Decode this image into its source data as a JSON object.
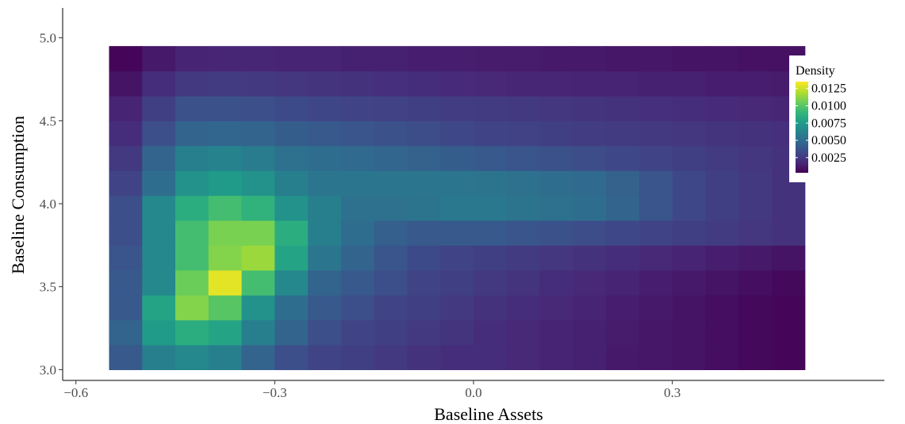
{
  "chart_data": {
    "type": "heatmap",
    "title": "",
    "xlabel": "Baseline Assets",
    "ylabel": "Baseline Consumption",
    "xlim": [
      -0.62,
      0.62
    ],
    "ylim": [
      2.935,
      5.18
    ],
    "x_ticks": [
      {
        "value": -0.6,
        "label": "−0.6"
      },
      {
        "value": -0.3,
        "label": "−0.3"
      },
      {
        "value": 0.0,
        "label": "0.0"
      },
      {
        "value": 0.3,
        "label": "0.3"
      }
    ],
    "y_ticks": [
      {
        "value": 3.0,
        "label": "3.0"
      },
      {
        "value": 3.5,
        "label": "3.5"
      },
      {
        "value": 4.0,
        "label": "4.0"
      },
      {
        "value": 4.5,
        "label": "4.5"
      },
      {
        "value": 5.0,
        "label": "5.0"
      }
    ],
    "x_bin_start": -0.55,
    "x_bin_width": 0.05,
    "y_bin_start": 3.0,
    "y_bin_height": 0.15,
    "density_grid": [
      [
        0.004,
        0.006,
        0.0065,
        0.006,
        0.0045,
        0.0035,
        0.003,
        0.0028,
        0.0025,
        0.0022,
        0.002,
        0.002,
        0.0018,
        0.0016,
        0.0015,
        0.0012,
        0.0011,
        0.001,
        0.0008,
        0.0006,
        0.0005
      ],
      [
        0.0045,
        0.0075,
        0.0085,
        0.008,
        0.006,
        0.0045,
        0.0035,
        0.003,
        0.0028,
        0.0025,
        0.0023,
        0.002,
        0.0018,
        0.0016,
        0.0015,
        0.0013,
        0.0011,
        0.001,
        0.0008,
        0.0006,
        0.0005
      ],
      [
        0.004,
        0.008,
        0.011,
        0.01,
        0.007,
        0.005,
        0.004,
        0.0035,
        0.003,
        0.0028,
        0.0025,
        0.0022,
        0.002,
        0.0018,
        0.0016,
        0.0014,
        0.0012,
        0.001,
        0.0008,
        0.0006,
        0.0005
      ],
      [
        0.004,
        0.0065,
        0.0105,
        0.013,
        0.0095,
        0.0065,
        0.0045,
        0.004,
        0.0035,
        0.003,
        0.0028,
        0.0025,
        0.0023,
        0.002,
        0.0018,
        0.0016,
        0.0014,
        0.0012,
        0.001,
        0.0008,
        0.0006
      ],
      [
        0.0038,
        0.0065,
        0.0095,
        0.011,
        0.0115,
        0.008,
        0.0055,
        0.0045,
        0.0038,
        0.0033,
        0.003,
        0.0028,
        0.0026,
        0.0024,
        0.0022,
        0.002,
        0.0018,
        0.0016,
        0.0014,
        0.0012,
        0.001
      ],
      [
        0.0035,
        0.0065,
        0.0095,
        0.0108,
        0.0108,
        0.0085,
        0.006,
        0.005,
        0.0043,
        0.004,
        0.004,
        0.004,
        0.0038,
        0.0036,
        0.0034,
        0.0032,
        0.003,
        0.0028,
        0.0026,
        0.0024,
        0.0022
      ],
      [
        0.0035,
        0.0065,
        0.0085,
        0.0095,
        0.0088,
        0.007,
        0.006,
        0.0052,
        0.0052,
        0.0054,
        0.0056,
        0.0056,
        0.0054,
        0.0052,
        0.005,
        0.0045,
        0.0038,
        0.0032,
        0.0028,
        0.0025,
        0.0022
      ],
      [
        0.003,
        0.005,
        0.007,
        0.0075,
        0.007,
        0.006,
        0.0055,
        0.0055,
        0.0055,
        0.0055,
        0.0055,
        0.0054,
        0.0052,
        0.005,
        0.0048,
        0.0044,
        0.0038,
        0.0032,
        0.0028,
        0.0025,
        0.0022
      ],
      [
        0.0025,
        0.0045,
        0.006,
        0.0062,
        0.0058,
        0.0052,
        0.005,
        0.0048,
        0.0046,
        0.0044,
        0.0042,
        0.004,
        0.0038,
        0.0036,
        0.0034,
        0.0032,
        0.003,
        0.0028,
        0.0026,
        0.0024,
        0.0022
      ],
      [
        0.002,
        0.0035,
        0.0045,
        0.0046,
        0.0045,
        0.0042,
        0.004,
        0.0038,
        0.0036,
        0.0034,
        0.0032,
        0.003,
        0.0029,
        0.0028,
        0.0027,
        0.0026,
        0.0025,
        0.0024,
        0.0023,
        0.0022,
        0.0021
      ],
      [
        0.0016,
        0.0028,
        0.0036,
        0.0036,
        0.0035,
        0.0033,
        0.0031,
        0.003,
        0.0029,
        0.0028,
        0.0027,
        0.0026,
        0.0025,
        0.0024,
        0.0023,
        0.0022,
        0.0021,
        0.002,
        0.0019,
        0.0018,
        0.0017
      ],
      [
        0.001,
        0.002,
        0.0025,
        0.0026,
        0.0025,
        0.0024,
        0.0023,
        0.0022,
        0.0021,
        0.002,
        0.0019,
        0.0018,
        0.0017,
        0.0017,
        0.0016,
        0.0016,
        0.0015,
        0.0015,
        0.0014,
        0.0014,
        0.0013
      ],
      [
        0.0005,
        0.0012,
        0.0016,
        0.0017,
        0.0017,
        0.0016,
        0.0016,
        0.0015,
        0.0015,
        0.0014,
        0.0014,
        0.0013,
        0.0013,
        0.0012,
        0.0012,
        0.0011,
        0.0011,
        0.001,
        0.001,
        0.0009,
        0.0009
      ]
    ],
    "color_scale": {
      "name": "viridis",
      "min": 0.0003,
      "max": 0.0135,
      "stops": [
        "#440154",
        "#482878",
        "#3e4989",
        "#31688e",
        "#26828e",
        "#1f9e89",
        "#35b779",
        "#6ece58",
        "#b5de2b",
        "#fde725"
      ]
    },
    "legend": {
      "title": "Density",
      "position": "top-right",
      "entries": [
        {
          "value": 0.0125,
          "label": "0.0125"
        },
        {
          "value": 0.01,
          "label": "0.0100"
        },
        {
          "value": 0.0075,
          "label": "0.0075"
        },
        {
          "value": 0.005,
          "label": "0.0050"
        },
        {
          "value": 0.0025,
          "label": "0.0025"
        }
      ]
    },
    "grid": false
  }
}
